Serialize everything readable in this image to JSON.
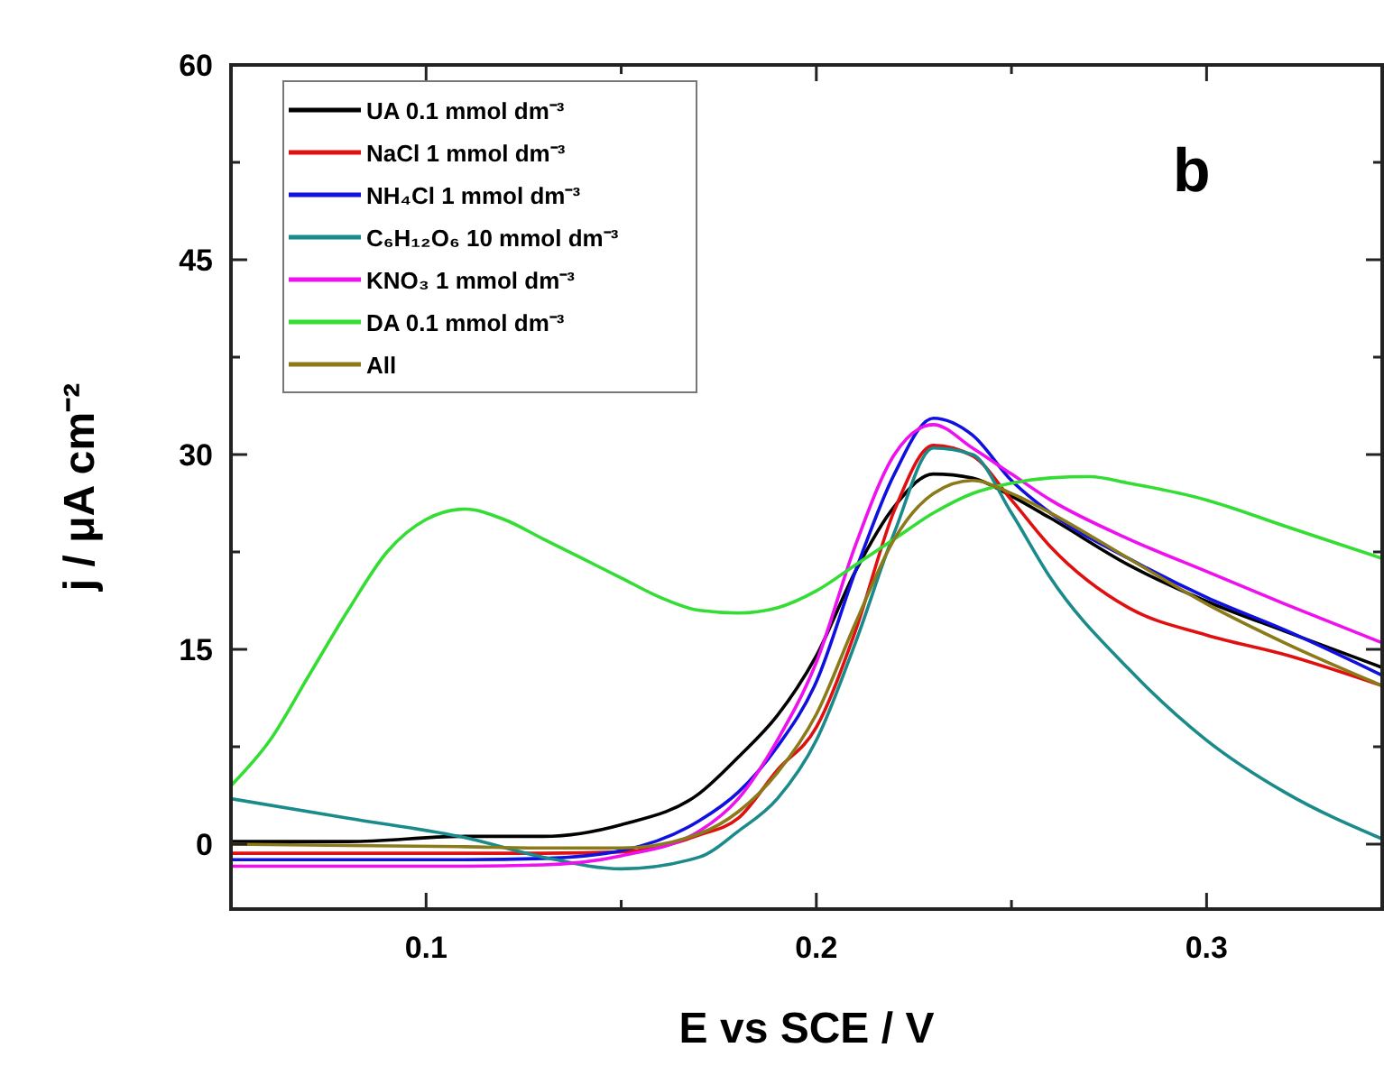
{
  "chart_data": {
    "type": "line",
    "xlabel": "E vs SCE  /  V",
    "ylabel": "j  / μA  cm⁻²",
    "annotations": [
      "b"
    ],
    "x": [
      0.05,
      0.08,
      0.11,
      0.13,
      0.15,
      0.17,
      0.18,
      0.19,
      0.2,
      0.21,
      0.22,
      0.23,
      0.24,
      0.25,
      0.26,
      0.28,
      0.3,
      0.32,
      0.345
    ],
    "series": [
      {
        "name": "UA 0.1 mmol dm⁻³",
        "color": "#000000",
        "values": [
          0.2,
          0.2,
          0.6,
          0.6,
          1.5,
          3.9,
          6.7,
          9.9,
          14.5,
          21,
          26,
          28.5,
          28.2,
          26.8,
          25.1,
          21.5,
          18.7,
          16.4,
          13.6
        ]
      },
      {
        "name": "NaCl 1 mmol dm⁻³",
        "color": "#e01010",
        "values": [
          -0.7,
          -0.7,
          -0.7,
          -0.7,
          -0.6,
          0.7,
          2,
          5.7,
          9,
          16.4,
          25.7,
          30.7,
          29.9,
          26.5,
          22.9,
          18.2,
          16.1,
          14.6,
          12.2
        ]
      },
      {
        "name": "NH₄Cl 1 mmol dm⁻³",
        "color": "#1010e0",
        "values": [
          -1.2,
          -1.2,
          -1.2,
          -1.1,
          -0.5,
          1.8,
          4,
          7.5,
          12.5,
          21,
          28.5,
          32.8,
          31.5,
          28,
          25.5,
          22,
          19,
          16.5,
          13
        ]
      },
      {
        "name": "C₆H₁₂O₆ 10 mmol dm⁻³",
        "color": "#1a8a8a",
        "values": [
          3.5,
          2,
          0.5,
          -1,
          -1.9,
          -1,
          1,
          3.5,
          8,
          15.5,
          24,
          30.5,
          30,
          25.5,
          20.5,
          13.5,
          8,
          4,
          0.4
        ]
      },
      {
        "name": "KNO₃ 1 mmol dm⁻³",
        "color": "#ee10ee",
        "values": [
          -1.7,
          -1.7,
          -1.7,
          -1.6,
          -0.9,
          1,
          3.5,
          8,
          14,
          23,
          30,
          32.3,
          30.5,
          28.5,
          26.5,
          23.5,
          21,
          18.5,
          15.5
        ]
      },
      {
        "name": "DA 0.1 mmol dm⁻³",
        "color": "#33dd33",
        "x": [
          0.05,
          0.06,
          0.07,
          0.08,
          0.09,
          0.1,
          0.11,
          0.12,
          0.13,
          0.14,
          0.15,
          0.16,
          0.17,
          0.18,
          0.19,
          0.2,
          0.21,
          0.22,
          0.23,
          0.24,
          0.25,
          0.26,
          0.27,
          0.28,
          0.3,
          0.32,
          0.345
        ],
        "values": [
          4.5,
          8,
          13,
          18,
          22.5,
          25,
          25.8,
          25,
          23.5,
          22,
          20.5,
          19,
          18,
          17.8,
          18.2,
          19.5,
          21.5,
          23.5,
          25.5,
          27,
          27.8,
          28.2,
          28.3,
          27.8,
          26.5,
          24.5,
          22
        ]
      },
      {
        "name": "All",
        "color": "#8a7a1a",
        "values": [
          0,
          -0.1,
          -0.2,
          -0.3,
          -0.3,
          0.8,
          2.5,
          5.5,
          10,
          17,
          23.5,
          27,
          28,
          27,
          25.5,
          22,
          18.5,
          15.5,
          12.2
        ]
      }
    ],
    "xlim": [
      0.05,
      0.345
    ],
    "ylim": [
      -5,
      60
    ],
    "xticks": [
      0.1,
      {
        "value": 0.15,
        "label": null
      },
      0.2,
      {
        "value": 0.25,
        "label": null
      },
      0.3
    ],
    "yticks": [
      0,
      {
        "value": 7.5,
        "label": null
      },
      15,
      {
        "value": 22.5,
        "label": null
      },
      30,
      {
        "value": 37.5,
        "label": null
      },
      45,
      {
        "value": 52.5,
        "label": null
      },
      60
    ],
    "grid": false,
    "legend": "top left",
    "marker": "none",
    "line_style": "solid"
  }
}
